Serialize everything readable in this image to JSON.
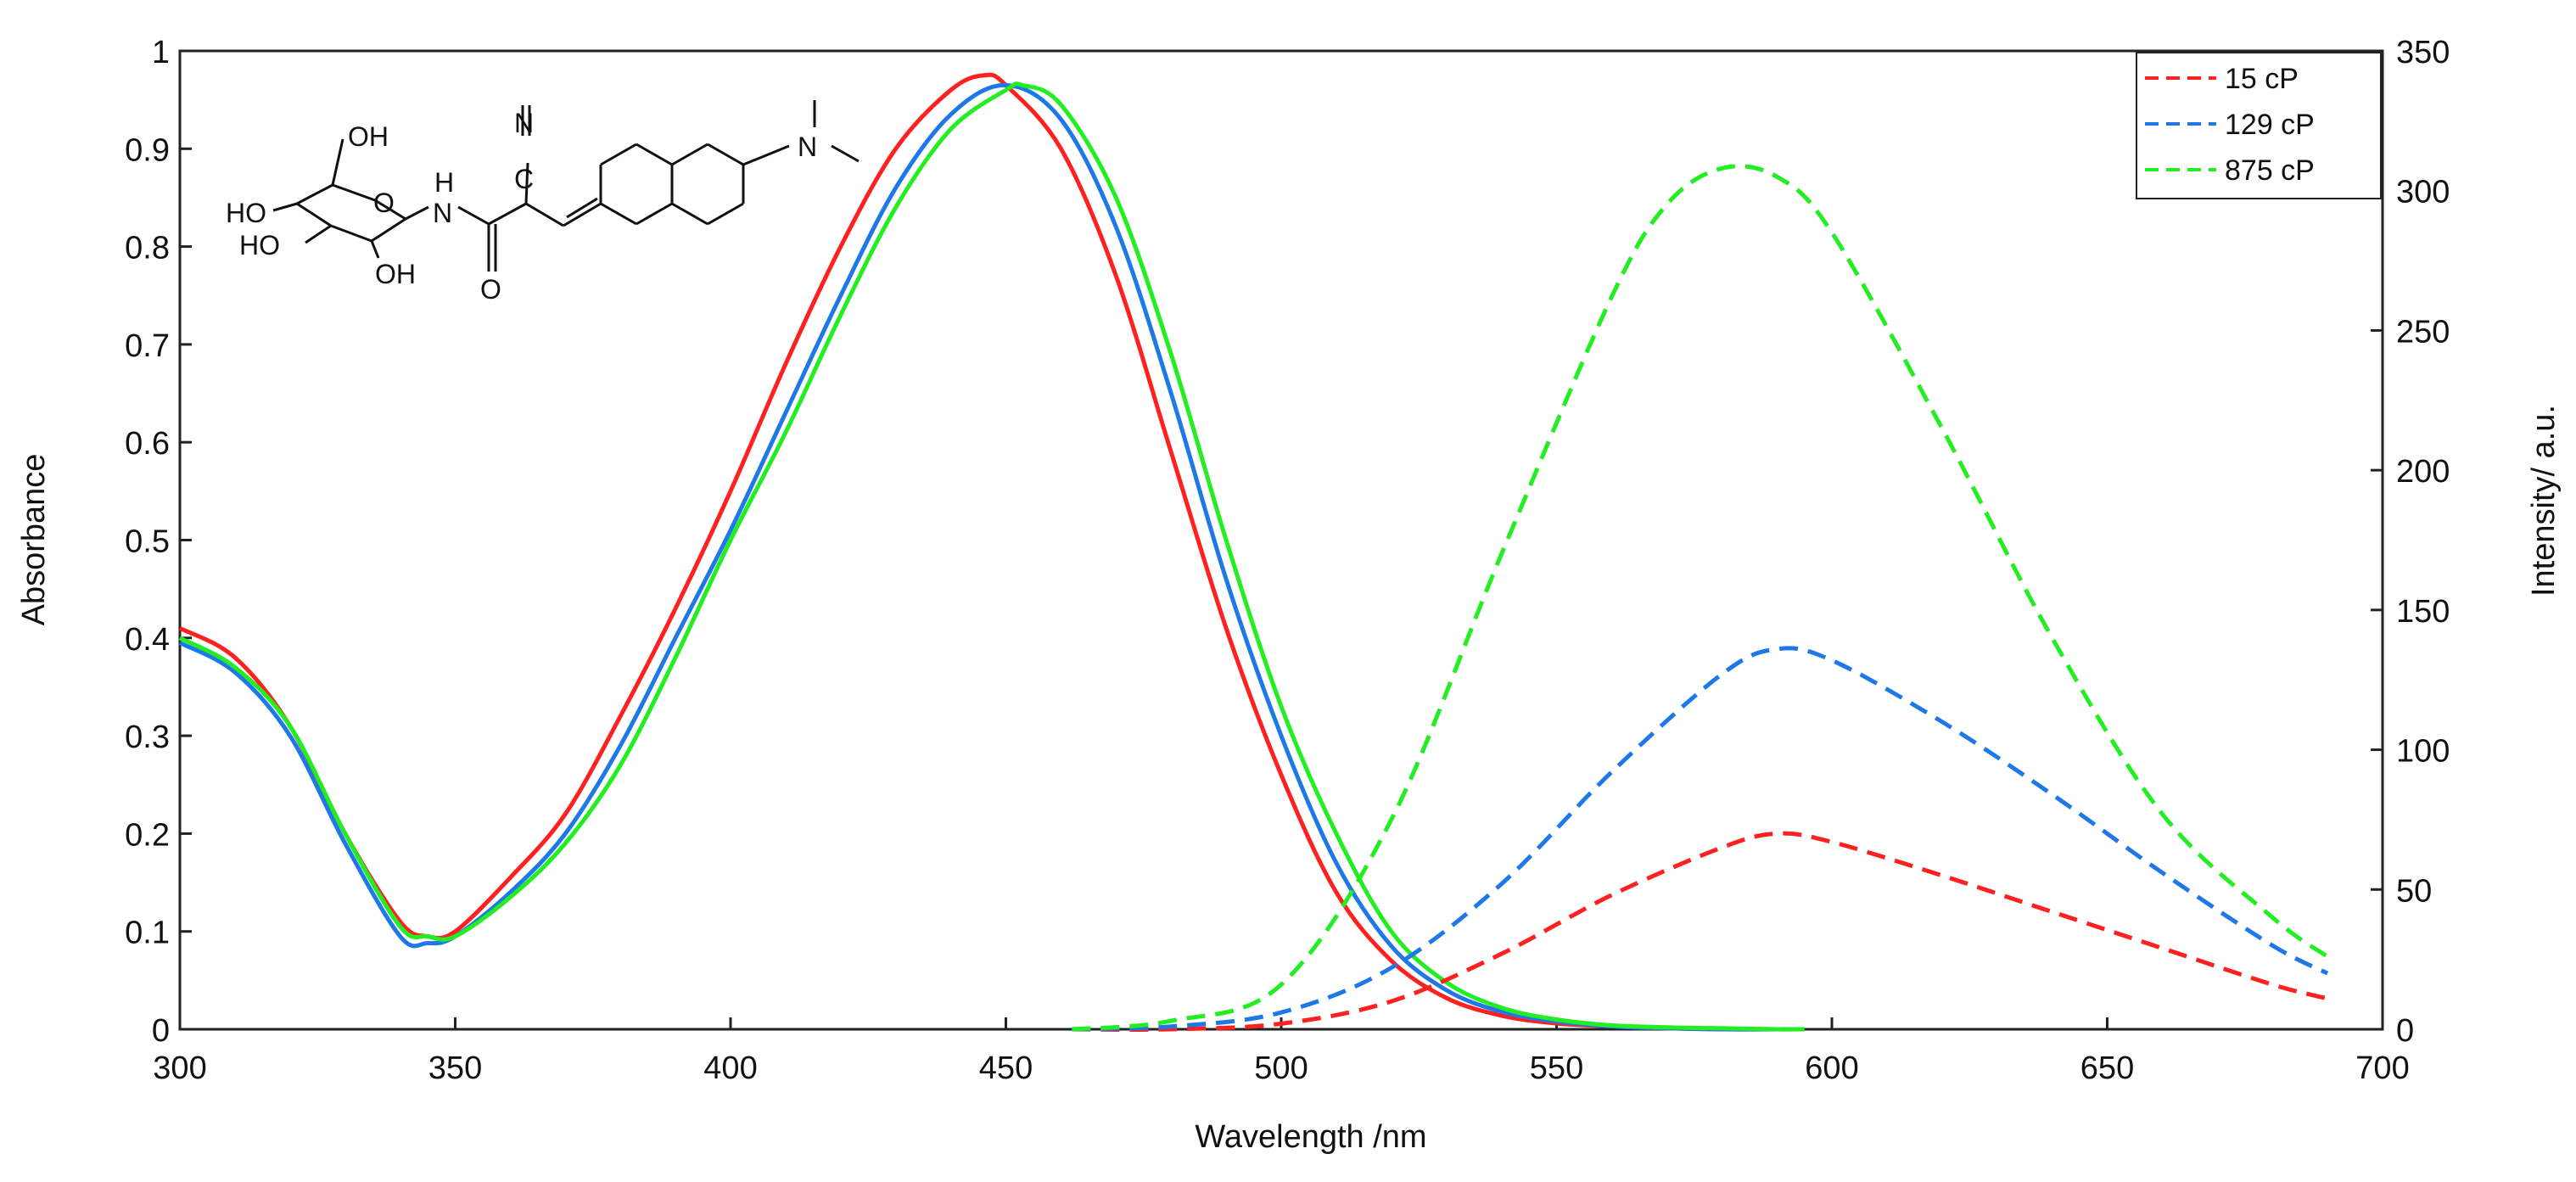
{
  "chart_data": {
    "type": "line",
    "xlabel": "Wavelength /nm",
    "ylabel": "Absorbance",
    "y2label": "Intensity/ a.u.",
    "xlim": [
      300,
      700
    ],
    "ylim": [
      0,
      1
    ],
    "y2lim": [
      0,
      350
    ],
    "xticks": [
      300,
      350,
      400,
      450,
      500,
      550,
      600,
      650,
      700
    ],
    "yticks": [
      0,
      0.1,
      0.2,
      0.3,
      0.4,
      0.5,
      0.6,
      0.7,
      0.8,
      0.9,
      1
    ],
    "yticklabels": [
      "0",
      "0.1",
      "0.2",
      "0.3",
      "0.4",
      "0.5",
      "0.6",
      "0.7",
      "0.8",
      "0.9",
      "1"
    ],
    "y2ticks": [
      0,
      50,
      100,
      150,
      200,
      250,
      300,
      350
    ],
    "legend_position": "top-right",
    "colors": {
      "red": "#ff2020",
      "blue": "#1f78e8",
      "green": "#22ee22"
    },
    "absorbance_series": [
      {
        "name": "15 cP",
        "color": "#ff2020",
        "x": [
          300,
          310,
          320,
          330,
          340,
          345,
          350,
          360,
          370,
          380,
          390,
          400,
          410,
          420,
          430,
          440,
          446,
          450,
          460,
          470,
          480,
          490,
          500,
          510,
          520,
          530,
          540,
          550,
          560,
          570,
          580,
          590,
          595
        ],
        "y": [
          0.41,
          0.38,
          0.31,
          0.2,
          0.11,
          0.095,
          0.1,
          0.155,
          0.22,
          0.32,
          0.43,
          0.55,
          0.68,
          0.8,
          0.9,
          0.96,
          0.975,
          0.965,
          0.9,
          0.77,
          0.59,
          0.41,
          0.26,
          0.14,
          0.07,
          0.032,
          0.014,
          0.006,
          0.003,
          0.001,
          0.0,
          0.0,
          0.0
        ]
      },
      {
        "name": "129 cP",
        "color": "#1f78e8",
        "x": [
          300,
          310,
          320,
          330,
          340,
          345,
          350,
          360,
          370,
          380,
          390,
          400,
          410,
          420,
          430,
          440,
          450,
          460,
          470,
          480,
          490,
          500,
          510,
          520,
          530,
          540,
          550,
          560,
          570,
          580,
          590,
          595
        ],
        "y": [
          0.395,
          0.365,
          0.3,
          0.19,
          0.095,
          0.088,
          0.095,
          0.14,
          0.2,
          0.29,
          0.4,
          0.51,
          0.63,
          0.75,
          0.86,
          0.935,
          0.965,
          0.93,
          0.82,
          0.65,
          0.46,
          0.3,
          0.17,
          0.085,
          0.04,
          0.018,
          0.008,
          0.003,
          0.001,
          0.0,
          0.0,
          0.0
        ]
      },
      {
        "name": "875 cP",
        "color": "#22ee22",
        "x": [
          300,
          310,
          320,
          330,
          340,
          345,
          350,
          360,
          370,
          380,
          390,
          400,
          410,
          420,
          430,
          440,
          450,
          453,
          460,
          470,
          480,
          490,
          500,
          510,
          520,
          530,
          540,
          550,
          560,
          570,
          580,
          590,
          595
        ],
        "y": [
          0.4,
          0.37,
          0.31,
          0.2,
          0.105,
          0.095,
          0.095,
          0.135,
          0.19,
          0.27,
          0.38,
          0.5,
          0.61,
          0.73,
          0.84,
          0.92,
          0.96,
          0.965,
          0.945,
          0.85,
          0.69,
          0.5,
          0.33,
          0.2,
          0.1,
          0.048,
          0.022,
          0.01,
          0.004,
          0.002,
          0.001,
          0.0,
          0.0
        ]
      }
    ],
    "emission_series": [
      {
        "name": "15 cP",
        "color": "#ff2020",
        "x": [
          462,
          480,
          500,
          520,
          540,
          560,
          580,
          590,
          600,
          620,
          640,
          660,
          680,
          690
        ],
        "y": [
          0,
          0,
          2,
          10,
          27,
          48,
          65,
          70,
          67,
          55,
          42,
          29,
          16,
          11
        ]
      },
      {
        "name": "129 cP",
        "color": "#1f78e8",
        "x": [
          462,
          480,
          500,
          520,
          540,
          560,
          580,
          590,
          600,
          620,
          640,
          660,
          680,
          690
        ],
        "y": [
          0,
          1,
          6,
          22,
          52,
          92,
          127,
          136,
          132,
          110,
          84,
          56,
          30,
          20
        ]
      },
      {
        "name": "875 cP",
        "color": "#22ee22",
        "x": [
          462,
          480,
          500,
          520,
          540,
          560,
          570,
          580,
          590,
          600,
          620,
          640,
          660,
          680,
          690
        ],
        "y": [
          0,
          3,
          16,
          75,
          170,
          262,
          295,
          308,
          305,
          285,
          215,
          140,
          77,
          40,
          26
        ]
      }
    ],
    "legend": [
      "15 cP",
      "129 cP",
      "875 cP"
    ],
    "structure_labels": [
      "OH",
      "HO",
      "HO",
      "OH",
      "O",
      "N",
      "H",
      "N",
      "C",
      "O",
      "N"
    ]
  }
}
